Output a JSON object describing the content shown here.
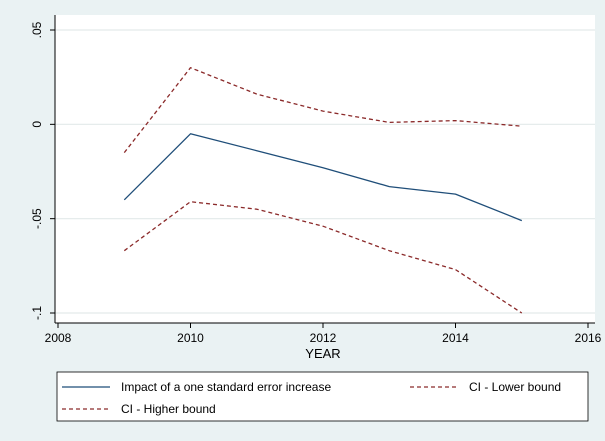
{
  "chart_data": {
    "type": "line",
    "title": "",
    "xlabel": "YEAR",
    "ylabel": "",
    "xlim": [
      2008,
      2016
    ],
    "ylim": [
      -0.1,
      0.05
    ],
    "x_ticks": [
      2008,
      2010,
      2012,
      2014,
      2016
    ],
    "x_tick_labels": [
      "2008",
      "2010",
      "2012",
      "2014",
      "2016"
    ],
    "y_ticks": [
      -0.1,
      -0.05,
      0,
      0.05
    ],
    "y_tick_labels": [
      "-.1",
      "-.05",
      "0",
      ".05"
    ],
    "grid": true,
    "legend_position": "bottom",
    "series": [
      {
        "name": "Impact of a one standard error increase",
        "color": "#1f4e79",
        "dash": "solid",
        "x": [
          2009,
          2010,
          2011,
          2012,
          2013,
          2014,
          2015
        ],
        "y": [
          -0.04,
          -0.005,
          -0.014,
          -0.023,
          -0.033,
          -0.037,
          -0.051
        ]
      },
      {
        "name": "CI - Lower bound",
        "color": "#8b2a2a",
        "dash": "dashed",
        "x": [
          2009,
          2010,
          2011,
          2012,
          2013,
          2014,
          2015
        ],
        "y": [
          -0.067,
          -0.041,
          -0.045,
          -0.054,
          -0.067,
          -0.077,
          -0.1
        ]
      },
      {
        "name": "CI - Higher bound",
        "color": "#8b2a2a",
        "dash": "dashed",
        "x": [
          2009,
          2010,
          2011,
          2012,
          2013,
          2014,
          2015
        ],
        "y": [
          -0.015,
          0.03,
          0.016,
          0.007,
          0.001,
          0.002,
          -0.001
        ]
      }
    ]
  }
}
